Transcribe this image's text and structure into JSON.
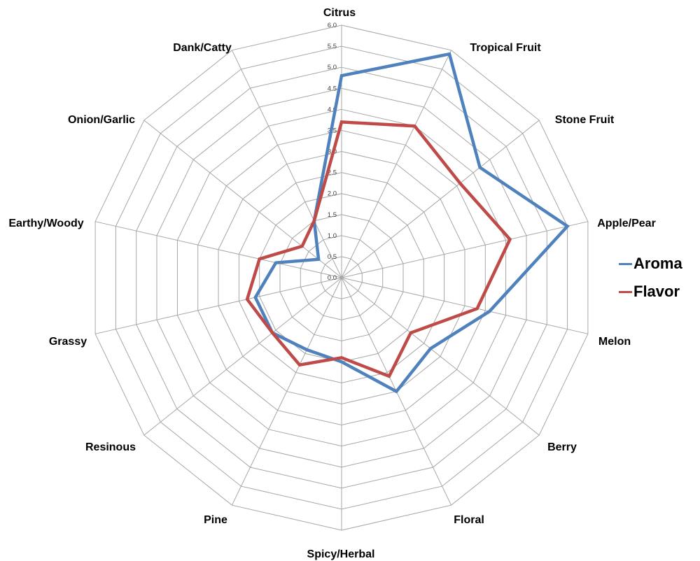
{
  "chart_data": {
    "type": "radar",
    "title": "",
    "categories": [
      "Citrus",
      "Tropical Fruit",
      "Stone Fruit",
      "Apple/Pear",
      "Melon",
      "Berry",
      "Floral",
      "Spicy/Herbal",
      "Pine",
      "Resinous",
      "Grassy",
      "Earthy/Woody",
      "Onion/Garlic",
      "Dank/Catty"
    ],
    "series": [
      {
        "name": "Aroma",
        "color": "#4f81bd",
        "values": [
          4.8,
          5.9,
          4.2,
          5.5,
          3.6,
          2.7,
          3.0,
          2.0,
          1.9,
          2.1,
          2.1,
          1.6,
          0.7,
          1.5
        ]
      },
      {
        "name": "Flavor",
        "color": "#be4b48",
        "values": [
          3.7,
          4.0,
          3.6,
          4.1,
          3.3,
          2.1,
          2.6,
          1.9,
          2.3,
          2.1,
          2.3,
          2.0,
          1.2,
          1.5
        ]
      }
    ],
    "radial_axis": {
      "min": 0.0,
      "max": 6.0,
      "step": 0.5,
      "tick_labels": [
        "0.0",
        "0.5",
        "1.0",
        "1.5",
        "2.0",
        "2.5",
        "3.0",
        "3.5",
        "4.0",
        "4.5",
        "5.0",
        "5.5",
        "6.0"
      ]
    },
    "grid": true,
    "legend_position": "right",
    "colors": {
      "gridline": "#a6a6a6",
      "tick_text": "#404040",
      "axis_label_text": "#000000",
      "background": "#ffffff"
    }
  }
}
